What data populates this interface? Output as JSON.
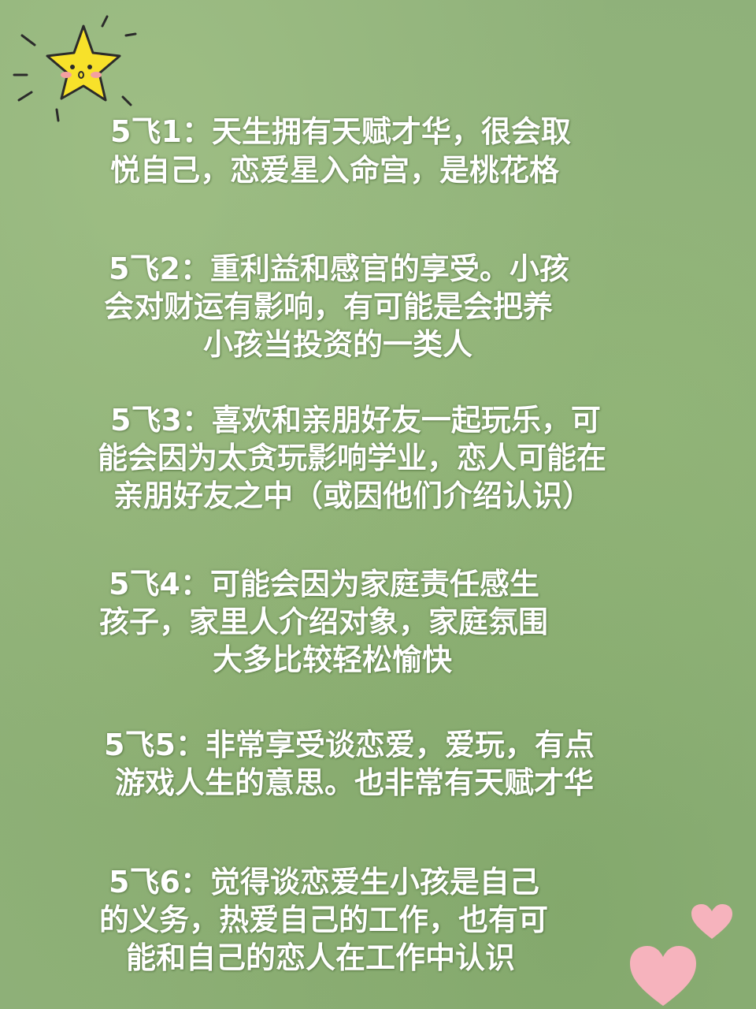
{
  "entries": [
    {
      "lines": [
        "5飞1：天生拥有天赋才华，很会取",
        "悦自己，恋爱星入命宫，是桃花格"
      ]
    },
    {
      "lines": [
        "5飞2：重利益和感官的享受。小孩",
        "会对财运有影响，有可能是会把养",
        "小孩当投资的一类人"
      ]
    },
    {
      "lines": [
        "5飞3：喜欢和亲朋好友一起玩乐，可",
        "能会因为太贪玩影响学业，恋人可能在",
        "亲朋好友之中（或因他们介绍认识）"
      ]
    },
    {
      "lines": [
        "5飞4：可能会因为家庭责任感生",
        "孩子，家里人介绍对象，家庭氛围",
        "大多比较轻松愉快"
      ]
    },
    {
      "lines": [
        "5飞5：非常享受谈恋爱，爱玩，有点",
        "游戏人生的意思。也非常有天赋才华"
      ]
    },
    {
      "lines": [
        "5飞6：觉得谈恋爱生小孩是自己",
        "的义务，热爱自己的工作，也有可",
        "能和自己的恋人在工作中认识"
      ]
    }
  ],
  "decorations": {
    "star_icon": "star-icon",
    "heart_icon": "heart-icon",
    "star_color": "#f7e12a",
    "heart_color": "#f6b3bd"
  }
}
